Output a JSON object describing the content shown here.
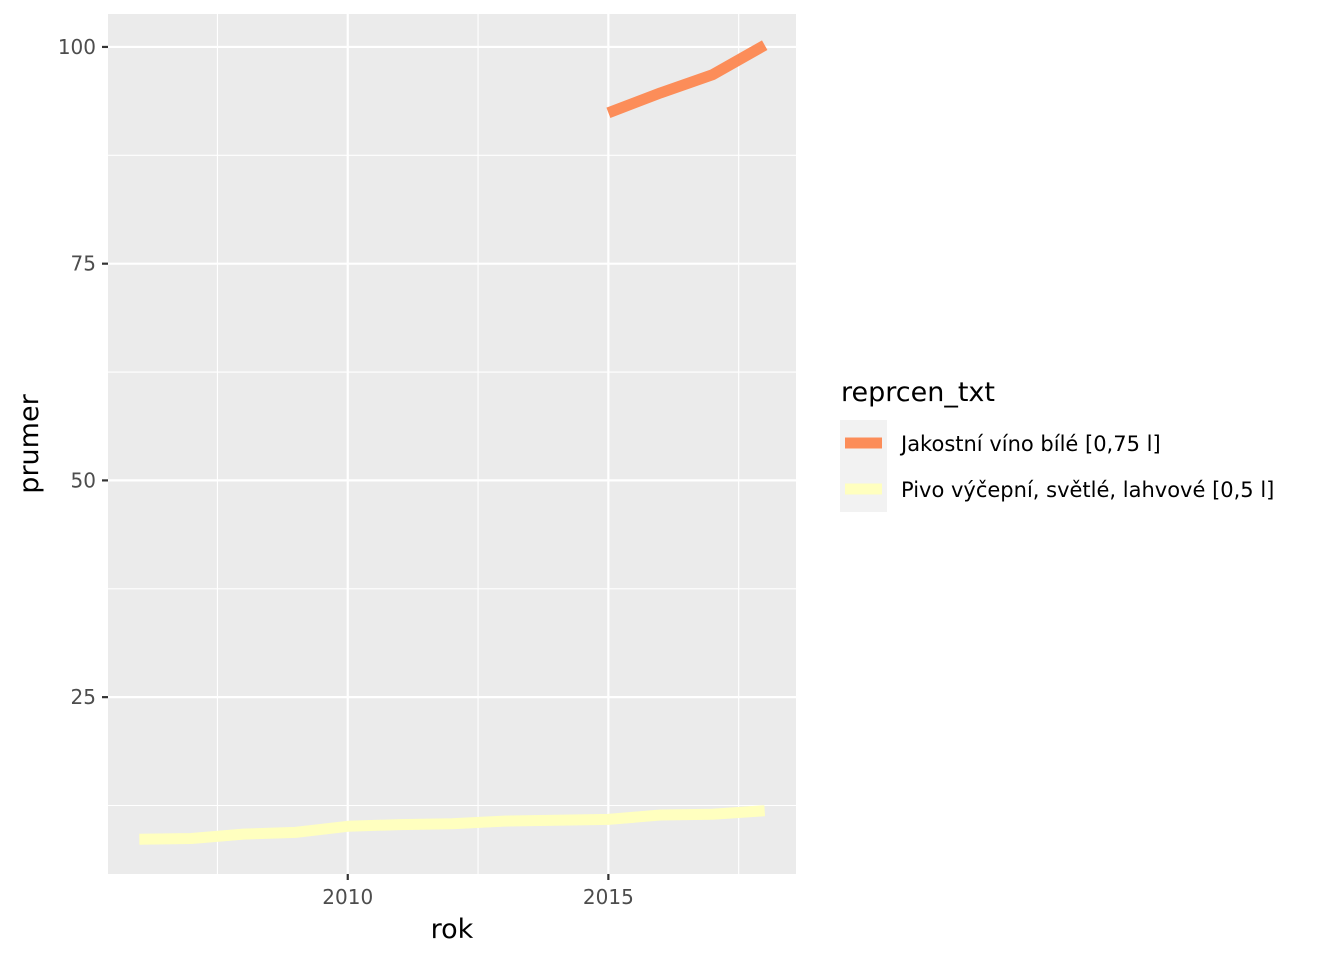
{
  "chart_data": {
    "type": "line",
    "xlabel": "rok",
    "ylabel": "prumer",
    "xlim": [
      2005.4,
      2018.6
    ],
    "ylim": [
      4.6,
      103.8
    ],
    "x_ticks": [
      2010,
      2015
    ],
    "y_ticks": [
      25,
      50,
      75,
      100
    ],
    "x_minor_ticks": [
      2007.5,
      2012.5,
      2017.5
    ],
    "y_minor_ticks": [
      12.5,
      37.5,
      62.5,
      87.5
    ],
    "grid": true,
    "legend": {
      "title": "reprcen_txt",
      "position": "right"
    },
    "series": [
      {
        "name": "Jakostní víno bílé [0,75 l]",
        "color": "#fc8d59",
        "x": [
          2015,
          2016,
          2017,
          2018
        ],
        "y": [
          92.4,
          94.7,
          96.8,
          100.2
        ]
      },
      {
        "name": "Pivo výčepní, světlé, lahvové [0,5 l]",
        "color": "#ffffbf",
        "x": [
          2006,
          2007,
          2008,
          2009,
          2010,
          2011,
          2012,
          2013,
          2014,
          2015,
          2016,
          2017,
          2018
        ],
        "y": [
          8.6,
          8.7,
          9.2,
          9.4,
          10.1,
          10.3,
          10.4,
          10.7,
          10.8,
          10.9,
          11.4,
          11.5,
          11.9
        ]
      }
    ]
  }
}
